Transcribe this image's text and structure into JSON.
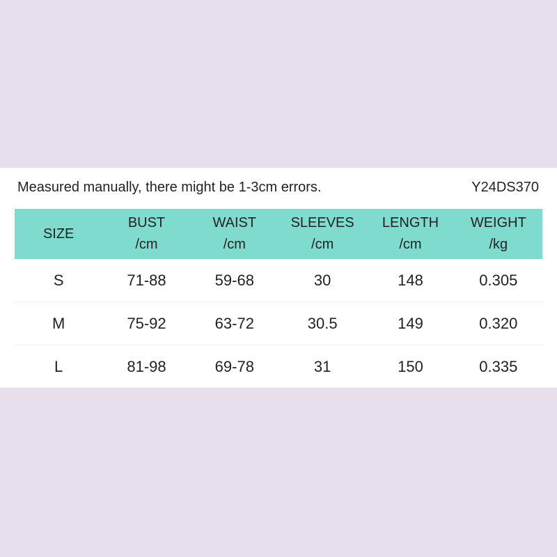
{
  "note": "Measured manually, there might be 1-3cm errors.",
  "code": "Y24DS370",
  "colors": {
    "background": "#e8dfed",
    "header": "#80dbcf"
  },
  "headers": [
    {
      "label": "SIZE",
      "unit": ""
    },
    {
      "label": "BUST",
      "unit": "/cm"
    },
    {
      "label": "WAIST",
      "unit": "/cm"
    },
    {
      "label": "SLEEVES",
      "unit": "/cm"
    },
    {
      "label": "LENGTH",
      "unit": "/cm"
    },
    {
      "label": "WEIGHT",
      "unit": "/kg"
    }
  ],
  "rows": [
    [
      "S",
      "71-88",
      "59-68",
      "30",
      "148",
      "0.305"
    ],
    [
      "M",
      "75-92",
      "63-72",
      "30.5",
      "149",
      "0.320"
    ],
    [
      "L",
      "81-98",
      "69-78",
      "31",
      "150",
      "0.335"
    ]
  ]
}
